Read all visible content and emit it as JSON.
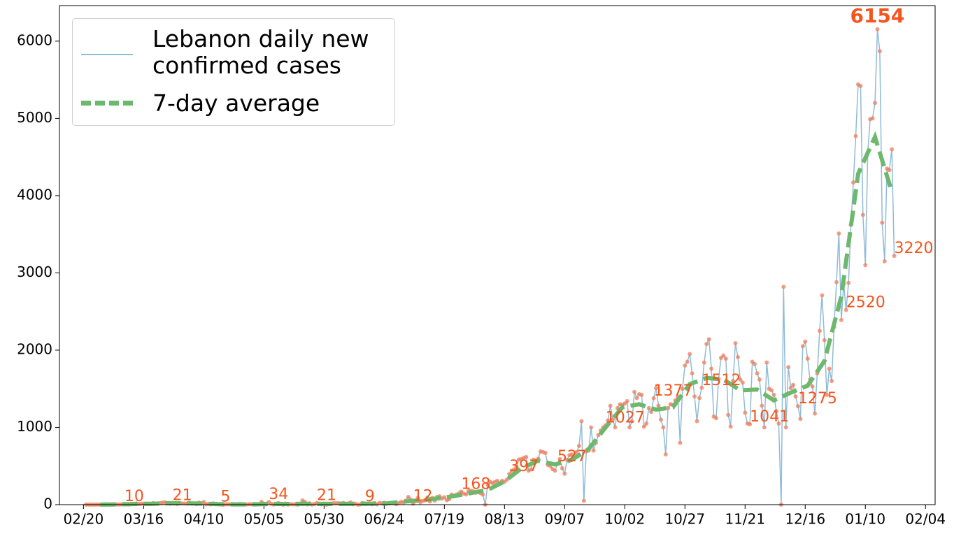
{
  "chart_data": {
    "type": "line",
    "xlim": [
      "02/10",
      "02/08"
    ],
    "xticks": [
      "02/20",
      "03/16",
      "04/10",
      "05/05",
      "05/30",
      "06/24",
      "07/19",
      "08/13",
      "09/07",
      "10/02",
      "10/27",
      "11/21",
      "12/16",
      "01/10",
      "02/04"
    ],
    "ylim": [
      0,
      6460
    ],
    "yticks": [
      0,
      1000,
      2000,
      3000,
      4000,
      5000,
      6000
    ],
    "legend": "upper left",
    "series": [
      {
        "name": "Lebanon daily new confirmed cases",
        "color": "#8fbbd9",
        "marker_color": "#ef7f5e",
        "x": [
          "02/21",
          "02/22",
          "02/23",
          "02/24",
          "02/25",
          "02/26",
          "02/27",
          "02/28",
          "02/29",
          "03/01",
          "03/02",
          "03/03",
          "03/04",
          "03/05",
          "03/06",
          "03/07",
          "03/08",
          "03/09",
          "03/10",
          "03/11",
          "03/12",
          "03/13",
          "03/14",
          "03/15",
          "03/16",
          "03/17",
          "03/18",
          "03/19",
          "03/20",
          "03/21",
          "03/22",
          "03/23",
          "03/24",
          "03/25",
          "03/26",
          "03/27",
          "03/28",
          "03/29",
          "03/30",
          "03/31",
          "04/01",
          "04/02",
          "04/03",
          "04/04",
          "04/05",
          "04/06",
          "04/07",
          "04/08",
          "04/09",
          "04/10",
          "04/11",
          "04/12",
          "04/13",
          "04/14",
          "04/15",
          "04/16",
          "04/17",
          "04/18",
          "04/19",
          "04/20",
          "04/21",
          "04/22",
          "04/23",
          "04/24",
          "04/25",
          "04/26",
          "04/27",
          "04/28",
          "04/29",
          "04/30",
          "05/01",
          "05/02",
          "05/03",
          "05/04",
          "05/05",
          "05/06",
          "05/07",
          "05/08",
          "05/09",
          "05/10",
          "05/11",
          "05/12",
          "05/13",
          "05/14",
          "05/15",
          "05/16",
          "05/17",
          "05/18",
          "05/19",
          "05/20",
          "05/21",
          "05/22",
          "05/23",
          "05/24",
          "05/25",
          "05/26",
          "05/27",
          "05/28",
          "05/29",
          "05/30",
          "05/31",
          "06/01",
          "06/02",
          "06/03",
          "06/04",
          "06/05",
          "06/06",
          "06/07",
          "06/08",
          "06/09",
          "06/10",
          "06/11",
          "06/12",
          "06/13",
          "06/14",
          "06/15",
          "06/16",
          "06/17",
          "06/18",
          "06/19",
          "06/20",
          "06/21",
          "06/22",
          "06/23",
          "06/24",
          "06/25",
          "06/26",
          "06/27",
          "06/28",
          "06/29",
          "06/30",
          "07/01",
          "07/02",
          "07/03",
          "07/04",
          "07/05",
          "07/06",
          "07/07",
          "07/08",
          "07/09",
          "07/10",
          "07/11",
          "07/12",
          "07/13",
          "07/14",
          "07/15",
          "07/16",
          "07/17",
          "07/18",
          "07/19",
          "07/20",
          "07/21",
          "07/22",
          "07/23",
          "07/24",
          "07/25",
          "07/26",
          "07/27",
          "07/28",
          "07/29",
          "07/30",
          "07/31",
          "08/01",
          "08/02",
          "08/03",
          "08/04",
          "08/05",
          "08/06",
          "08/07",
          "08/08",
          "08/09",
          "08/10",
          "08/11",
          "08/12",
          "08/13",
          "08/14",
          "08/15",
          "08/16",
          "08/17",
          "08/18",
          "08/19",
          "08/20",
          "08/21",
          "08/22",
          "08/23",
          "08/24",
          "08/25",
          "08/26",
          "08/27",
          "08/28",
          "08/29",
          "08/30",
          "08/31",
          "09/01",
          "09/02",
          "09/03",
          "09/04",
          "09/05",
          "09/06",
          "09/07",
          "09/08",
          "09/09",
          "09/10",
          "09/11",
          "09/12",
          "09/13",
          "09/14",
          "09/15",
          "09/16",
          "09/17",
          "09/18",
          "09/19",
          "09/20",
          "09/21",
          "09/22",
          "09/23",
          "09/24",
          "09/25",
          "09/26",
          "09/27",
          "09/28",
          "09/29",
          "09/30",
          "10/01",
          "10/02",
          "10/03",
          "10/04",
          "10/05",
          "10/06",
          "10/07",
          "10/08",
          "10/09",
          "10/10",
          "10/11",
          "10/12",
          "10/13",
          "10/14",
          "10/15",
          "10/16",
          "10/17",
          "10/18",
          "10/19",
          "10/20",
          "10/21",
          "10/22",
          "10/23",
          "10/24",
          "10/25",
          "10/26",
          "10/27",
          "10/28",
          "10/29",
          "10/30",
          "10/31",
          "11/01",
          "11/02",
          "11/03",
          "11/04",
          "11/05",
          "11/06",
          "11/07",
          "11/08",
          "11/09",
          "11/10",
          "11/11",
          "11/12",
          "11/13",
          "11/14",
          "11/15",
          "11/16",
          "11/17",
          "11/18",
          "11/19",
          "11/20",
          "11/21",
          "11/22",
          "11/23",
          "11/24",
          "11/25",
          "11/26",
          "11/27",
          "11/28",
          "11/29",
          "11/30",
          "12/01",
          "12/02",
          "12/03",
          "12/04",
          "12/05",
          "12/06",
          "12/07",
          "12/08",
          "12/09",
          "12/10",
          "12/11",
          "12/12",
          "12/13",
          "12/14",
          "12/15",
          "12/16",
          "12/17",
          "12/18",
          "12/19",
          "12/20",
          "12/21",
          "12/22",
          "12/23",
          "12/24",
          "12/25",
          "12/26",
          "12/27",
          "12/28",
          "12/29",
          "12/30",
          "12/31",
          "01/01",
          "01/02",
          "01/03",
          "01/04",
          "01/05",
          "01/06",
          "01/07",
          "01/08",
          "01/09",
          "01/10",
          "01/11",
          "01/12",
          "01/13",
          "01/14",
          "01/15",
          "01/16",
          "01/17",
          "01/18",
          "01/19",
          "01/20",
          "01/21",
          "01/22"
        ],
        "values": [
          1,
          0,
          0,
          0,
          0,
          1,
          0,
          0,
          2,
          3,
          2,
          3,
          6,
          2,
          1,
          3,
          10,
          5,
          2,
          11,
          9,
          16,
          8,
          12,
          13,
          14,
          12,
          9,
          20,
          11,
          16,
          21,
          28,
          29,
          18,
          12,
          21,
          16,
          9,
          17,
          16,
          15,
          14,
          25,
          15,
          14,
          7,
          27,
          16,
          34,
          6,
          10,
          5,
          16,
          10,
          3,
          5,
          0,
          4,
          5,
          4,
          3,
          4,
          6,
          8,
          2,
          3,
          3,
          7,
          4,
          8,
          4,
          4,
          36,
          12,
          5,
          34,
          11,
          2,
          13,
          20,
          8,
          0,
          14,
          1,
          7,
          5,
          4,
          0,
          10,
          54,
          37,
          3,
          16,
          1,
          9,
          21,
          13,
          4,
          12,
          0,
          9,
          11,
          19,
          18,
          19,
          14,
          23,
          9,
          12,
          29,
          4,
          13,
          0,
          3,
          22,
          9,
          12,
          15,
          6,
          20,
          5,
          23,
          17,
          24,
          12,
          17,
          19,
          20,
          7,
          19,
          36,
          29,
          51,
          100,
          66,
          12,
          48,
          86,
          32,
          47,
          57,
          89,
          41,
          87,
          52,
          99,
          108,
          78,
          95,
          56,
          71,
          131,
          116,
          130,
          145,
          168,
          142,
          132,
          175,
          180,
          172,
          155,
          160,
          150,
          130,
          0,
          255,
          295,
          279,
          294,
          309,
          278,
          309,
          295,
          323,
          397,
          439,
          456,
          492,
          585,
          589,
          605,
          616,
          439,
          456,
          581,
          572,
          595,
          690,
          680,
          670,
          516,
          500,
          460,
          440,
          527,
          590,
          470,
          400,
          580,
          640,
          650,
          610,
          680,
          760,
          1080,
          50,
          690,
          700,
          1000,
          700,
          800,
          900,
          960,
          1000,
          1027,
          1090,
          1280,
          1100,
          1000,
          1250,
          1300,
          1290,
          1310,
          1340,
          1000,
          1080,
          1460,
          1380,
          1430,
          1420,
          1010,
          1050,
          1250,
          1200,
          1377,
          1510,
          1280,
          1100,
          1000,
          650,
          1250,
          1300,
          1290,
          1350,
          1400,
          800,
          1500,
          1800,
          1850,
          1950,
          1700,
          1400,
          1080,
          1380,
          1512,
          1840,
          2080,
          2140,
          1760,
          1140,
          1120,
          1630,
          1900,
          1930,
          1890,
          1160,
          1010,
          1600,
          2090,
          1910,
          1620,
          1580,
          1190,
          1050,
          1041,
          1850,
          1820,
          1700,
          1620,
          1280,
          1000,
          1840,
          1500,
          1480,
          1420,
          1210,
          1050,
          0,
          2820,
          1000,
          1780,
          1510,
          1550,
          1400,
          1275,
          1110,
          2050,
          2110,
          1890,
          1620,
          1530,
          1180,
          1700,
          2250,
          2710,
          2130,
          1420,
          1760,
          1600,
          2300,
          2880,
          3510,
          2390,
          2860,
          2520,
          2870,
          3620,
          4170,
          4770,
          5440,
          5420,
          3750,
          3100,
          4560,
          4990,
          5000,
          5200,
          6154,
          5870,
          3650,
          3150,
          4350,
          4330,
          4600,
          3220
        ]
      },
      {
        "name": "7-day average",
        "color": "#6cb86c",
        "dashed": true,
        "x": [
          "02/27",
          "03/05",
          "03/12",
          "03/19",
          "03/26",
          "04/02",
          "04/09",
          "04/16",
          "04/23",
          "04/30",
          "05/07",
          "05/14",
          "05/21",
          "05/28",
          "06/04",
          "06/11",
          "06/18",
          "06/25",
          "07/02",
          "07/09",
          "07/16",
          "07/23",
          "07/30",
          "08/06",
          "08/13",
          "08/20",
          "08/27",
          "09/03",
          "09/10",
          "09/17",
          "09/24",
          "10/01",
          "10/08",
          "10/15",
          "10/22",
          "10/29",
          "11/05",
          "11/12",
          "11/19",
          "11/26",
          "12/03",
          "12/10",
          "12/17",
          "12/24",
          "12/31",
          "01/07",
          "01/14",
          "01/21"
        ],
        "values": [
          0.5,
          3,
          8,
          12,
          18,
          17,
          14,
          7,
          4,
          4,
          10,
          8,
          12,
          10,
          12,
          12,
          13,
          15,
          40,
          55,
          80,
          110,
          150,
          190,
          300,
          470,
          570,
          520,
          580,
          720,
          1000,
          1260,
          1300,
          1230,
          1260,
          1560,
          1640,
          1620,
          1480,
          1490,
          1350,
          1450,
          1540,
          1860,
          2700,
          4280,
          4760,
          4050
        ]
      }
    ],
    "annotations": [
      {
        "x": "03/08",
        "text": "10"
      },
      {
        "x": "03/28",
        "text": "21"
      },
      {
        "x": "04/17",
        "text": "5"
      },
      {
        "x": "05/07",
        "text": "34"
      },
      {
        "x": "05/27",
        "text": "21"
      },
      {
        "x": "06/16",
        "text": "9"
      },
      {
        "x": "07/06",
        "text": "12"
      },
      {
        "x": "07/26",
        "text": "168"
      },
      {
        "x": "08/15",
        "text": "397"
      },
      {
        "x": "09/04",
        "text": "527"
      },
      {
        "x": "09/24",
        "text": "1027"
      },
      {
        "x": "10/14",
        "text": "1377"
      },
      {
        "x": "11/03",
        "text": "1512"
      },
      {
        "x": "11/23",
        "text": "1041"
      },
      {
        "x": "12/13",
        "text": "1275"
      },
      {
        "x": "01/02",
        "text": "2520"
      },
      {
        "x": "01/22",
        "text": "3220"
      },
      {
        "x": "01/15",
        "text": "6154",
        "bold": true
      }
    ],
    "annotation_color": "#f5541c"
  }
}
